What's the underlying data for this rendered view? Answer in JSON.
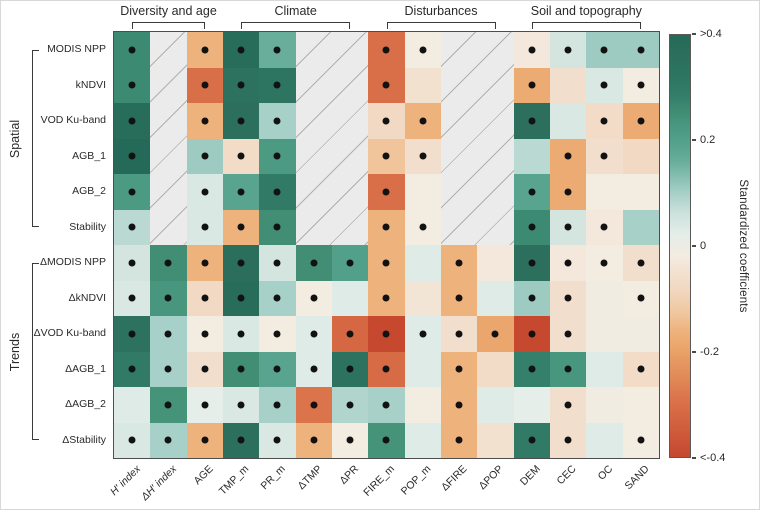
{
  "colorbar_title": "Standardized coefficients",
  "chart_data": {
    "type": "heatmap",
    "rows": [
      "MODIS NPP",
      "kNDVI",
      "VOD Ku-band",
      "AGB_1",
      "AGB_2",
      "Stability",
      "ΔMODIS NPP",
      "ΔkNDVI",
      "ΔVOD Ku-band",
      "ΔAGB_1",
      "ΔAGB_2",
      "ΔStability"
    ],
    "columns": [
      {
        "label": "H′ index",
        "italic": true
      },
      {
        "label": "ΔH′ index",
        "italic": true
      },
      {
        "label": "AGE",
        "italic": false
      },
      {
        "label": "TMP_m",
        "italic": false
      },
      {
        "label": "PR_m",
        "italic": false
      },
      {
        "label": "ΔTMP",
        "italic": false
      },
      {
        "label": "ΔPR",
        "italic": false
      },
      {
        "label": "FIRE_m",
        "italic": false
      },
      {
        "label": "POP_m",
        "italic": false
      },
      {
        "label": "ΔFIRE",
        "italic": false
      },
      {
        "label": "ΔPOP",
        "italic": false
      },
      {
        "label": "DEM",
        "italic": false
      },
      {
        "label": "CEC",
        "italic": false
      },
      {
        "label": "OC",
        "italic": false
      },
      {
        "label": "SAND",
        "italic": false
      }
    ],
    "column_groups": [
      {
        "label": "Diversity and age",
        "cols": [
          0,
          2
        ]
      },
      {
        "label": "Climate",
        "cols": [
          3,
          6
        ]
      },
      {
        "label": "Disturbances",
        "cols": [
          7,
          10
        ]
      },
      {
        "label": "Soil and topography",
        "cols": [
          11,
          14
        ]
      }
    ],
    "row_groups": [
      {
        "label": "Spatial",
        "rows": [
          0,
          5
        ]
      },
      {
        "label": "Trends",
        "rows": [
          6,
          11
        ]
      }
    ],
    "na_bands": [
      [
        1,
        1
      ],
      [
        5,
        6
      ],
      [
        9,
        10
      ]
    ],
    "cells": [
      [
        [
          0.26,
          1
        ],
        null,
        [
          -0.16,
          1
        ],
        [
          0.38,
          1
        ],
        [
          0.16,
          1
        ],
        null,
        null,
        [
          -0.3,
          1
        ],
        [
          -0.02,
          1
        ],
        null,
        null,
        [
          -0.03,
          1
        ],
        [
          0.05,
          1
        ],
        [
          0.11,
          1
        ],
        [
          0.11,
          1
        ]
      ],
      [
        [
          0.26,
          1
        ],
        null,
        [
          -0.3,
          1
        ],
        [
          0.34,
          1
        ],
        [
          0.32,
          1
        ],
        null,
        null,
        [
          -0.3,
          1
        ],
        [
          -0.05,
          0
        ],
        null,
        null,
        [
          -0.18,
          1
        ],
        [
          -0.06,
          0
        ],
        [
          0.04,
          1
        ],
        [
          -0.02,
          1
        ]
      ],
      [
        [
          0.38,
          1
        ],
        null,
        [
          -0.16,
          1
        ],
        [
          0.36,
          1
        ],
        [
          0.1,
          1
        ],
        null,
        null,
        [
          -0.08,
          1
        ],
        [
          -0.16,
          1
        ],
        null,
        null,
        [
          0.36,
          1
        ],
        [
          0.04,
          0
        ],
        [
          -0.07,
          1
        ],
        [
          -0.18,
          1
        ]
      ],
      [
        [
          0.4,
          1
        ],
        null,
        [
          0.11,
          1
        ],
        [
          -0.07,
          1
        ],
        [
          0.22,
          1
        ],
        null,
        null,
        [
          -0.13,
          1
        ],
        [
          -0.06,
          1
        ],
        null,
        null,
        [
          0.08,
          0
        ],
        [
          -0.18,
          1
        ],
        [
          -0.06,
          1
        ],
        [
          -0.08,
          0
        ]
      ],
      [
        [
          0.22,
          1
        ],
        null,
        [
          0.04,
          1
        ],
        [
          0.19,
          1
        ],
        [
          0.3,
          1
        ],
        null,
        null,
        [
          -0.3,
          1
        ],
        [
          -0.02,
          0
        ],
        null,
        null,
        [
          0.19,
          1
        ],
        [
          -0.18,
          1
        ],
        [
          -0.02,
          0
        ],
        [
          -0.02,
          0
        ]
      ],
      [
        [
          0.08,
          1
        ],
        null,
        [
          0.04,
          1
        ],
        [
          -0.16,
          1
        ],
        [
          0.25,
          1
        ],
        null,
        null,
        [
          -0.16,
          1
        ],
        [
          -0.02,
          1
        ],
        null,
        null,
        [
          0.26,
          1
        ],
        [
          0.05,
          1
        ],
        [
          -0.03,
          1
        ],
        [
          0.1,
          0
        ]
      ],
      [
        [
          0.05,
          1
        ],
        [
          0.25,
          1
        ],
        [
          -0.16,
          1
        ],
        [
          0.37,
          1
        ],
        [
          0.05,
          1
        ],
        [
          0.25,
          1
        ],
        [
          0.2,
          1
        ],
        [
          -0.16,
          1
        ],
        [
          0.03,
          0
        ],
        [
          -0.16,
          1
        ],
        [
          -0.03,
          0
        ],
        [
          0.36,
          1
        ],
        [
          -0.03,
          1
        ],
        [
          -0.02,
          1
        ],
        [
          -0.06,
          1
        ]
      ],
      [
        [
          0.04,
          1
        ],
        [
          0.23,
          1
        ],
        [
          -0.08,
          1
        ],
        [
          0.38,
          1
        ],
        [
          0.1,
          1
        ],
        [
          -0.02,
          1
        ],
        [
          0.03,
          0
        ],
        [
          -0.16,
          1
        ],
        [
          -0.04,
          0
        ],
        [
          -0.16,
          1
        ],
        [
          0.03,
          0
        ],
        [
          0.11,
          1
        ],
        [
          -0.06,
          1
        ],
        [
          -0.01,
          0
        ],
        [
          -0.02,
          1
        ]
      ],
      [
        [
          0.34,
          1
        ],
        [
          0.1,
          1
        ],
        [
          -0.02,
          1
        ],
        [
          0.04,
          1
        ],
        [
          -0.02,
          1
        ],
        [
          0.03,
          1
        ],
        [
          -0.32,
          1
        ],
        [
          -0.4,
          1
        ],
        [
          0.03,
          1
        ],
        [
          -0.06,
          1
        ],
        [
          -0.19,
          1
        ],
        [
          -0.4,
          1
        ],
        [
          -0.06,
          1
        ],
        [
          -0.01,
          0
        ],
        [
          -0.01,
          0
        ]
      ],
      [
        [
          0.3,
          1
        ],
        [
          0.1,
          1
        ],
        [
          -0.06,
          1
        ],
        [
          0.25,
          1
        ],
        [
          0.19,
          1
        ],
        [
          0.03,
          1
        ],
        [
          0.34,
          1
        ],
        [
          -0.31,
          1
        ],
        [
          0.03,
          0
        ],
        [
          -0.16,
          1
        ],
        [
          -0.07,
          0
        ],
        [
          0.28,
          1
        ],
        [
          0.23,
          1
        ],
        [
          0.03,
          0
        ],
        [
          -0.07,
          1
        ]
      ],
      [
        [
          0.03,
          0
        ],
        [
          0.24,
          1
        ],
        [
          0.02,
          1
        ],
        [
          0.04,
          1
        ],
        [
          0.1,
          1
        ],
        [
          -0.29,
          1
        ],
        [
          0.09,
          1
        ],
        [
          0.1,
          1
        ],
        [
          -0.02,
          0
        ],
        [
          -0.16,
          1
        ],
        [
          0.03,
          0
        ],
        [
          0.02,
          0
        ],
        [
          -0.06,
          1
        ],
        [
          -0.01,
          0
        ],
        [
          -0.02,
          0
        ]
      ],
      [
        [
          0.04,
          1
        ],
        [
          0.1,
          1
        ],
        [
          -0.16,
          1
        ],
        [
          0.36,
          1
        ],
        [
          0.04,
          1
        ],
        [
          -0.16,
          1
        ],
        [
          -0.02,
          1
        ],
        [
          0.24,
          1
        ],
        [
          0.03,
          0
        ],
        [
          -0.16,
          1
        ],
        [
          -0.05,
          0
        ],
        [
          0.3,
          1
        ],
        [
          -0.06,
          1
        ],
        [
          0.03,
          0
        ],
        [
          -0.02,
          1
        ]
      ]
    ],
    "colorbar": {
      "label": "Standardized coefficients",
      "range": [
        -0.4,
        0.4
      ],
      "ticks": [
        {
          "label": ">0.4",
          "v": 0.4
        },
        {
          "label": "0.2",
          "v": 0.2
        },
        {
          "label": "0",
          "v": 0.0
        },
        {
          "label": "-0.2",
          "v": -0.2
        },
        {
          "label": "<-0.4",
          "v": -0.4
        }
      ]
    },
    "palette": {
      "stops": [
        [
          -0.4,
          "#c5482f"
        ],
        [
          -0.3,
          "#d96f48"
        ],
        [
          -0.2,
          "#e9a267"
        ],
        [
          -0.16,
          "#eeb37d"
        ],
        [
          -0.13,
          "#f0c59c"
        ],
        [
          -0.08,
          "#f1d9c3"
        ],
        [
          -0.05,
          "#f3e1d0"
        ],
        [
          -0.02,
          "#f3ece1"
        ],
        [
          0.0,
          "#edebe3"
        ],
        [
          0.02,
          "#e5eee9"
        ],
        [
          0.04,
          "#d9e8e3"
        ],
        [
          0.06,
          "#cfe2dd"
        ],
        [
          0.1,
          "#a7d0c8"
        ],
        [
          0.16,
          "#68ae9b"
        ],
        [
          0.2,
          "#52a08a"
        ],
        [
          0.24,
          "#459379"
        ],
        [
          0.28,
          "#35806a"
        ],
        [
          0.32,
          "#2d7561"
        ],
        [
          0.36,
          "#2b6f5c"
        ],
        [
          0.4,
          "#256a58"
        ]
      ],
      "na_background": "#ebebeb",
      "na_hatch_line": "#b3b0ad",
      "dot_color": "#121212",
      "grid_border": "#4d4d4d"
    }
  }
}
